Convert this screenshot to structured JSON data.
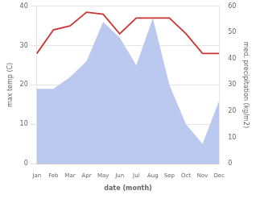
{
  "chart_data": {
    "type": "line",
    "xlabel": "date (month)",
    "ylabel": "max temp (C)",
    "y2label": "med. precipitation (kg/m2)",
    "categories": [
      "Jan",
      "Feb",
      "Mar",
      "Apr",
      "May",
      "Jun",
      "Jul",
      "Aug",
      "Sep",
      "Oct",
      "Nov",
      "Dec"
    ],
    "series": [
      {
        "type": "area",
        "axis": "y2",
        "color": "#bbc8f0",
        "values": [
          28.5,
          28.5,
          33,
          39,
          54,
          48,
          37.5,
          55.5,
          30,
          15,
          7.5,
          24
        ]
      },
      {
        "type": "line",
        "color": "#cc3333",
        "values": [
          28,
          34,
          35,
          38.5,
          38,
          33,
          37,
          37,
          37,
          33,
          28,
          28
        ]
      }
    ],
    "ylim": [
      0,
      40
    ],
    "yticks": [
      0,
      10,
      20,
      30,
      40
    ],
    "y2lim": [
      0,
      60
    ],
    "y2ticks": [
      0,
      10,
      20,
      30,
      40,
      50,
      60
    ],
    "grid": true
  }
}
